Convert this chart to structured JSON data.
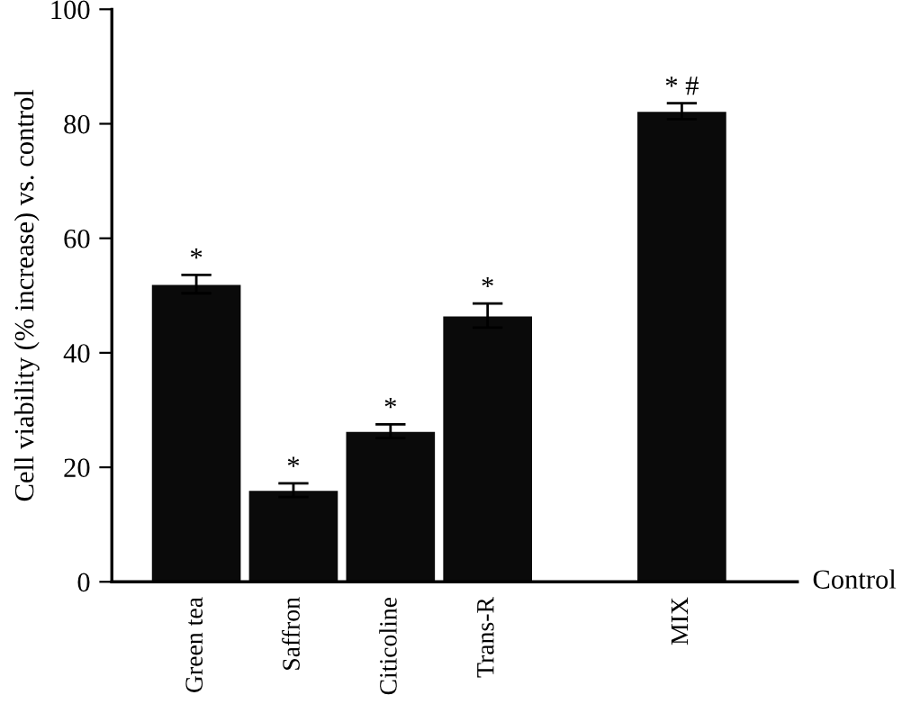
{
  "chart_data": {
    "type": "bar",
    "ylabel": "Cell viability (% increase) vs. control",
    "categories": [
      "Green tea",
      "Saffron",
      "Citicoline",
      "Trans-R",
      null,
      "MIX"
    ],
    "values": [
      52,
      16,
      26.3,
      46.5,
      null,
      82.2
    ],
    "errors": [
      1.6,
      1.2,
      1.2,
      2.1,
      null,
      1.4
    ],
    "color": "#0a0a0a",
    "ylim": [
      0,
      100
    ],
    "yticks": [
      0,
      20,
      40,
      60,
      80,
      100
    ],
    "annotations": [
      "*",
      "*",
      "*",
      "*",
      "* #",
      "Control"
    ]
  }
}
